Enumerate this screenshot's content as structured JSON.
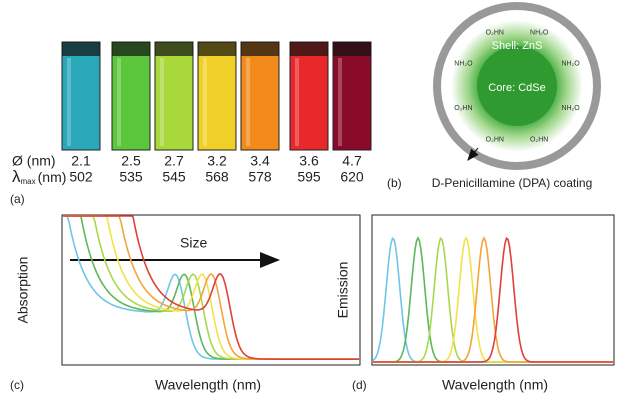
{
  "panel_a": {
    "tag": "(a)",
    "row_labels": {
      "diameter": "Ø (nm)",
      "lambda_symbol": "λ",
      "lambda_sub": "max",
      "lambda_unit": "(nm)"
    },
    "vials": [
      {
        "diameter": "2.1",
        "lambda": "502",
        "color": "#2aa7b8"
      },
      {
        "diameter": "2.5",
        "lambda": "535",
        "color": "#5cc63c"
      },
      {
        "diameter": "2.7",
        "lambda": "545",
        "color": "#a8d83a"
      },
      {
        "diameter": "3.2",
        "lambda": "568",
        "color": "#f0d028"
      },
      {
        "diameter": "3.4",
        "lambda": "578",
        "color": "#f28a1c"
      },
      {
        "diameter": "3.6",
        "lambda": "595",
        "color": "#e8282a"
      },
      {
        "diameter": "4.7",
        "lambda": "620",
        "color": "#8a0a2a"
      }
    ]
  },
  "panel_b": {
    "tag": "(b)",
    "shell": "Shell: ZnS",
    "core": "Core: CdSe",
    "caption": "D-Penicillamine (DPA) coating",
    "ligand_labels": [
      "NH₂O",
      "NH₂O",
      "NH₂O",
      "O₂HN",
      "O₂HN",
      "O₂HN",
      "NH₂O",
      "O₂HN"
    ]
  },
  "panel_c": {
    "tag": "(c)",
    "ylabel": "Absorption",
    "xlabel": "Wavelength (nm)",
    "arrow_label": "Size"
  },
  "panel_d": {
    "tag": "(d)",
    "ylabel": "Emission",
    "xlabel": "Wavelength (nm)"
  }
}
